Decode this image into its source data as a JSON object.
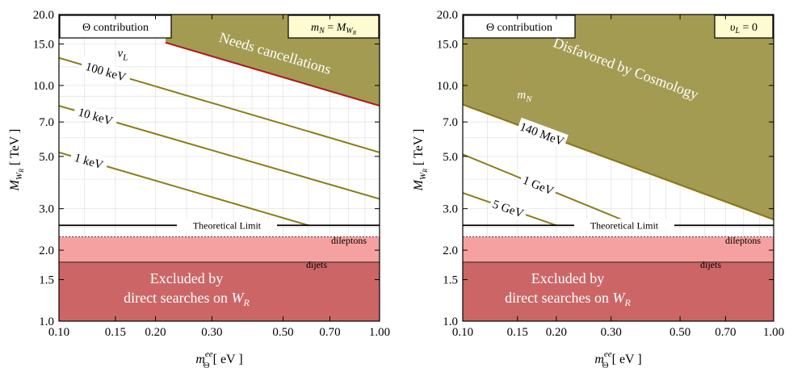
{
  "chart_data": [
    {
      "type": "line",
      "xlabel": "m_Θ^ee [ eV ]",
      "ylabel": "M_W_R [ TeV ]",
      "x_scale": "log",
      "y_scale": "log",
      "xlim": [
        0.1,
        1.0
      ],
      "ylim": [
        1.0,
        20.0
      ],
      "x_ticks": [
        0.1,
        0.15,
        0.2,
        0.3,
        0.5,
        0.7,
        1.0
      ],
      "x_tick_labels": [
        "0.10",
        "0.15",
        "0.20",
        "0.30",
        "0.50",
        "0.70",
        "1.00"
      ],
      "y_ticks": [
        1.0,
        1.5,
        2.0,
        3.0,
        5.0,
        7.0,
        10.0,
        15.0,
        20.0
      ],
      "y_tick_labels": [
        "1.0",
        "1.5",
        "2.0",
        "3.0",
        "5.0",
        "7.0",
        "10.0",
        "15.0",
        "20.0"
      ],
      "grid": true,
      "title_box": "Θ contribution",
      "condition_box": "m_N = M_W_R",
      "theoretical_limit": {
        "y": 2.55,
        "label": "Theoretical Limit"
      },
      "excluded_regions": [
        {
          "name": "dileptons",
          "y_range": [
            1.78,
            2.28
          ],
          "color": "#f6a1a1"
        },
        {
          "name": "dijets",
          "y_range": [
            1.0,
            1.78
          ],
          "color": "#cc6666"
        }
      ],
      "excluded_text": [
        "Excluded by",
        "direct searches on W_R"
      ],
      "shaded_region": {
        "label": "Needs cancellations",
        "boundary": {
          "x": [
            0.215,
            1.0
          ],
          "y": [
            15.2,
            8.2
          ]
        },
        "color": "#a39b52",
        "edge_color": "#b01818"
      },
      "contour_title": "ν_L",
      "series": [
        {
          "name": "100 keV",
          "x": [
            0.1,
            1.0
          ],
          "y": [
            13.1,
            5.2
          ]
        },
        {
          "name": "10 keV",
          "x": [
            0.1,
            1.0
          ],
          "y": [
            8.2,
            3.3
          ]
        },
        {
          "name": "1 keV",
          "x": [
            0.1,
            0.6
          ],
          "y": [
            5.2,
            2.55
          ]
        }
      ]
    },
    {
      "type": "line",
      "xlabel": "m_Θ^ee [ eV ]",
      "ylabel": "M_W_R [ TeV ]",
      "x_scale": "log",
      "y_scale": "log",
      "xlim": [
        0.1,
        1.0
      ],
      "ylim": [
        1.0,
        20.0
      ],
      "x_ticks": [
        0.1,
        0.15,
        0.2,
        0.3,
        0.5,
        0.7,
        1.0
      ],
      "x_tick_labels": [
        "0.10",
        "0.15",
        "0.20",
        "0.30",
        "0.50",
        "0.70",
        "1.00"
      ],
      "y_ticks": [
        1.0,
        1.5,
        2.0,
        3.0,
        5.0,
        7.0,
        10.0,
        15.0,
        20.0
      ],
      "y_tick_labels": [
        "1.0",
        "1.5",
        "2.0",
        "3.0",
        "5.0",
        "7.0",
        "10.0",
        "15.0",
        "20.0"
      ],
      "grid": true,
      "title_box": "Θ contribution",
      "condition_box": "υ_L = 0",
      "theoretical_limit": {
        "y": 2.55,
        "label": "Theoretical Limit"
      },
      "excluded_regions": [
        {
          "name": "dileptons",
          "y_range": [
            1.78,
            2.28
          ],
          "color": "#f6a1a1"
        },
        {
          "name": "dijets",
          "y_range": [
            1.0,
            1.78
          ],
          "color": "#cc6666"
        }
      ],
      "excluded_text": [
        "Excluded by",
        "direct searches on W_R"
      ],
      "shaded_region": {
        "label": "Disfavored by Cosmology",
        "boundary": {
          "x": [
            0.1,
            1.0
          ],
          "y": [
            8.3,
            2.7
          ]
        },
        "color": "#a39b52",
        "edge_color": "#b01818"
      },
      "contour_title": "m_N",
      "series": [
        {
          "name": "140 MeV",
          "x": [
            0.1,
            1.0
          ],
          "y": [
            8.3,
            2.7
          ]
        },
        {
          "name": "1 GeV",
          "x": [
            0.1,
            0.36
          ],
          "y": [
            5.1,
            2.55
          ]
        },
        {
          "name": "5 GeV",
          "x": [
            0.1,
            0.2
          ],
          "y": [
            3.5,
            2.55
          ]
        }
      ]
    }
  ]
}
